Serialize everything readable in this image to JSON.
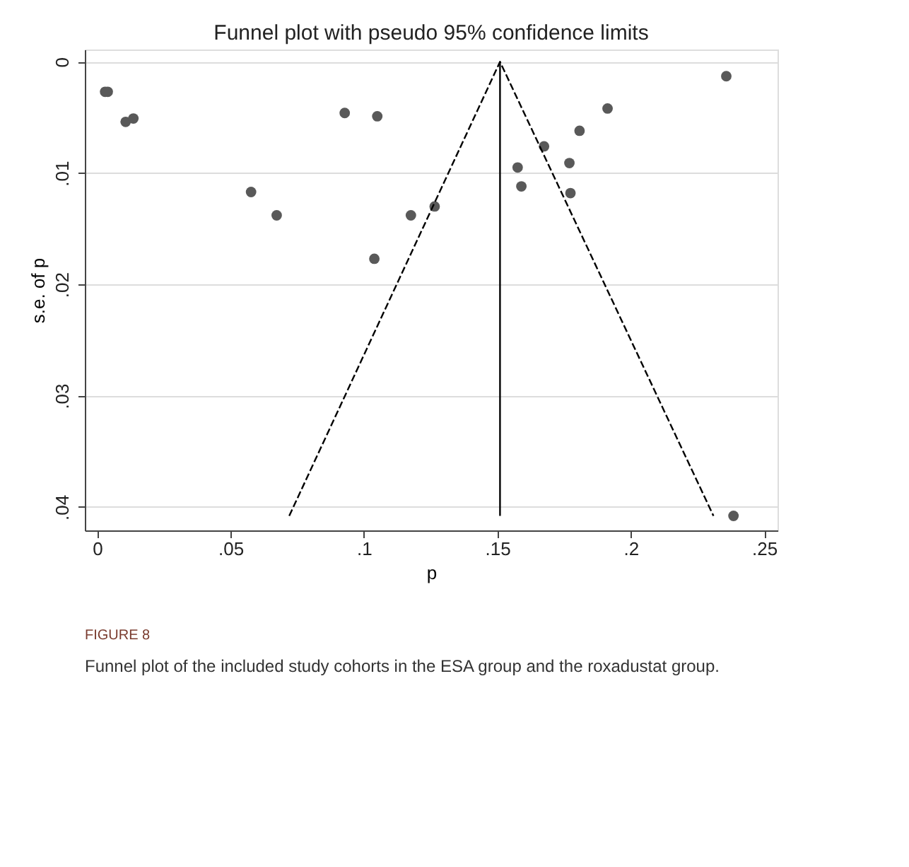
{
  "chart_data": {
    "type": "scatter",
    "title": "Funnel plot with pseudo 95% confidence limits",
    "xlabel": "p",
    "ylabel": "s.e. of p",
    "series": [
      {
        "color": "#595959",
        "marker": "circle",
        "x": [
          0.003,
          0.004,
          0.0107,
          0.0136,
          0.0577,
          0.0673,
          0.0928,
          0.105,
          0.1039,
          0.1176,
          0.1265,
          0.1576,
          0.159,
          0.1675,
          0.177,
          0.1774,
          0.1808,
          0.1913,
          0.2358,
          0.2385
        ],
        "values": [
          0.0027,
          0.0027,
          0.0054,
          0.0051,
          0.0117,
          0.0138,
          0.0046,
          0.0049,
          0.0177,
          0.0138,
          0.013,
          0.0095,
          0.0112,
          0.0076,
          0.0091,
          0.0118,
          0.0062,
          0.0042,
          0.0013,
          0.0408
        ]
      },
      {
        "type": "line",
        "color": "#000000",
        "line_style": "dashed",
        "x": [
          0.072,
          0.151,
          0.231
        ],
        "values": [
          0.0408,
          0,
          0.0408
        ]
      },
      {
        "type": "line",
        "color": "#000000",
        "line_style": "solid",
        "x": [
          0.151,
          0.151
        ],
        "values": [
          0,
          0.0408
        ]
      }
    ],
    "xlim": [
      -0.0046,
      0.255
    ],
    "ylim": [
      0.0421,
      -0.0011
    ],
    "xticks": [
      0,
      {
        "value": 0.05,
        "label": ".05"
      },
      {
        "value": 0.1,
        "label": ".1"
      },
      {
        "value": 0.15,
        "label": ".15"
      },
      {
        "value": 0.2,
        "label": ".2"
      },
      {
        "value": 0.25,
        "label": ".25"
      }
    ],
    "yticks": [
      0,
      {
        "value": 0.01,
        "label": ".01"
      },
      {
        "value": 0.02,
        "label": ".02"
      },
      {
        "value": 0.03,
        "label": ".03"
      },
      {
        "value": 0.04,
        "label": ".04"
      }
    ],
    "grid": "y",
    "annotations": [
      "FIGURE 8",
      "Funnel plot of the included study cohorts in the ESA group and the roxadustat group."
    ]
  }
}
